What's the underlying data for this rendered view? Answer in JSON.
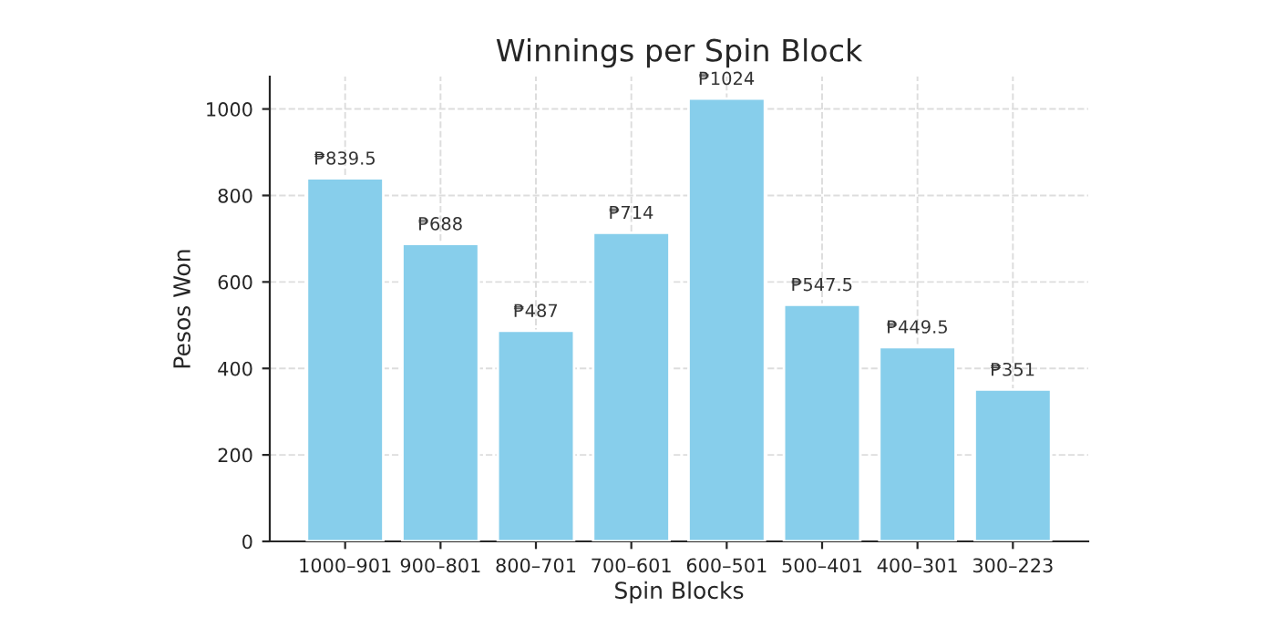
{
  "chart_data": {
    "type": "bar",
    "title": "Winnings per Spin Block",
    "xlabel": "Spin Blocks",
    "ylabel": "Pesos Won",
    "categories": [
      "1000–901",
      "900–801",
      "800–701",
      "700–601",
      "600–501",
      "500–401",
      "400–301",
      "300–223"
    ],
    "values": [
      839.5,
      688,
      487,
      714,
      1024,
      547.5,
      449.5,
      351
    ],
    "value_labels": [
      "₱839.5",
      "₱688",
      "₱487",
      "₱714",
      "₱1024",
      "₱547.5",
      "₱449.5",
      "₱351"
    ],
    "color": "#87ceeb",
    "ylim": [
      0,
      1075
    ],
    "yticks": [
      0,
      200,
      400,
      600,
      800,
      1000
    ],
    "grid": true
  }
}
